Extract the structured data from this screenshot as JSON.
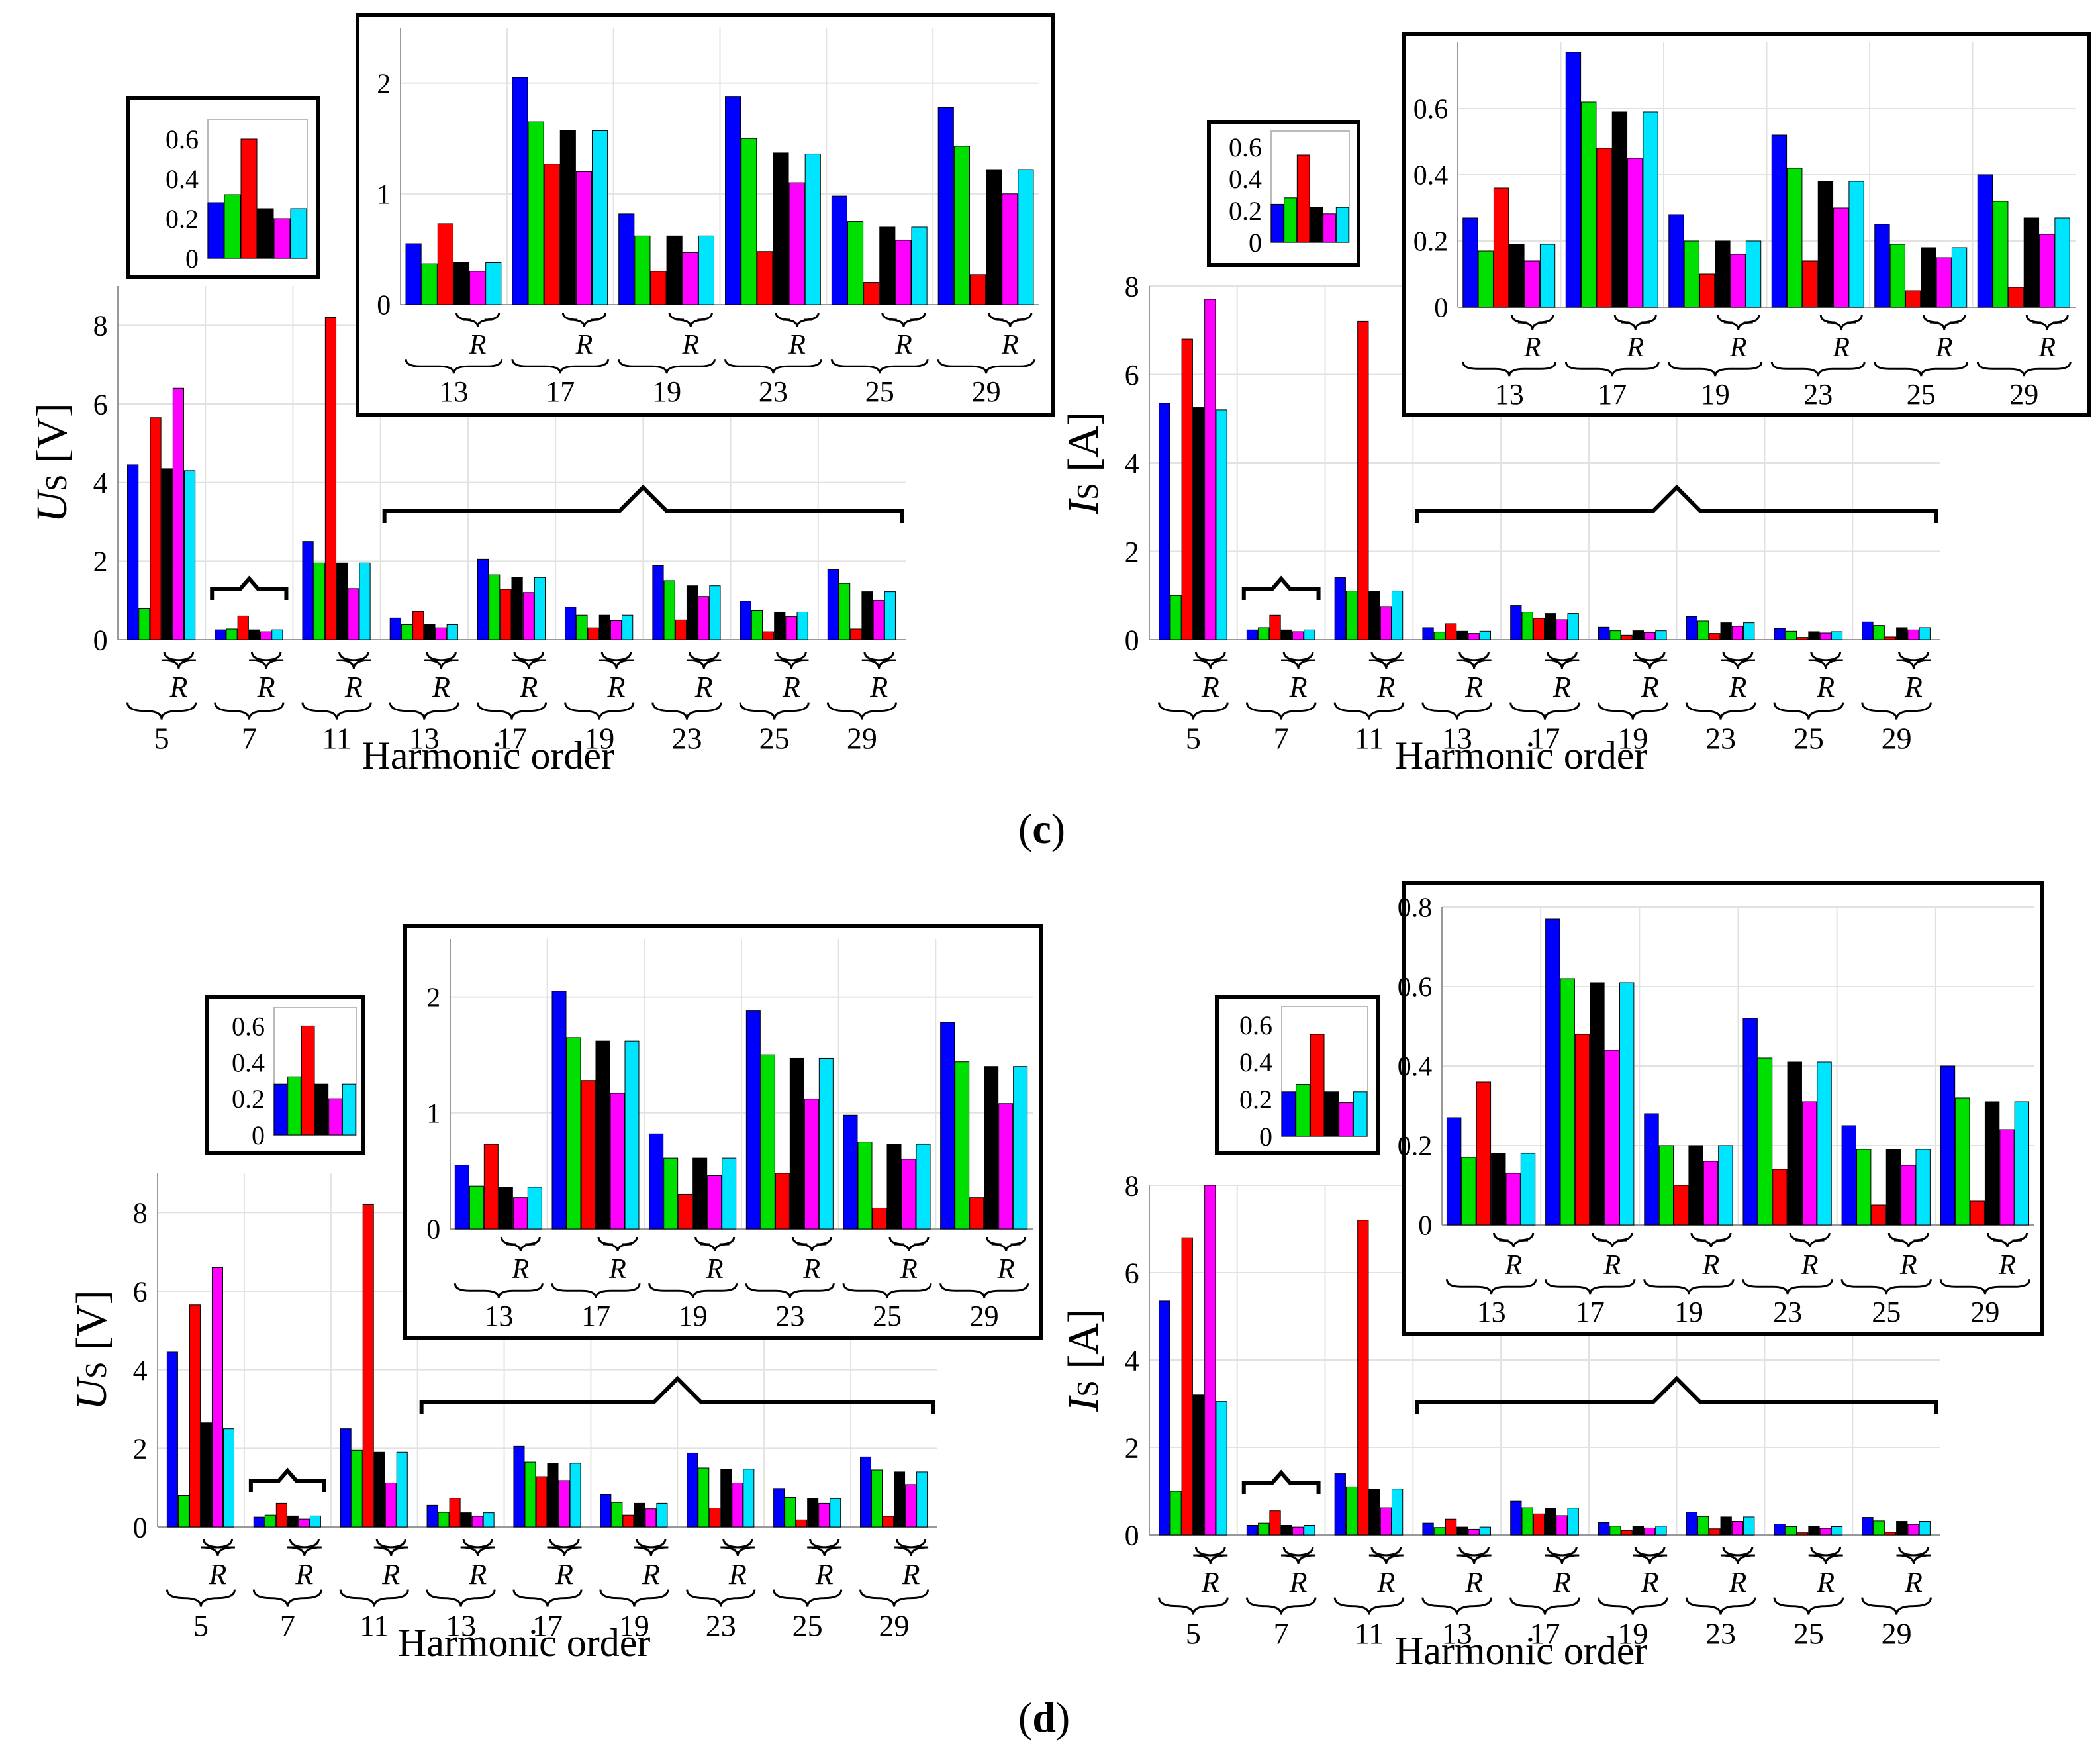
{
  "figure": {
    "label_c": {
      "open": "(",
      "letter": "c",
      "close": ")"
    },
    "label_d": {
      "open": "(",
      "letter": "d",
      "close": ")"
    },
    "series_colors": [
      "#0000ff",
      "#00e000",
      "#ff0000",
      "#000000",
      "#ff00ff",
      "#00e5ff"
    ],
    "brace_marker": "R"
  },
  "chart_data": [
    {
      "id": "c-voltage",
      "type": "bar",
      "xlabel": "Harmonic order",
      "ylabel_main": "U",
      "ylabel_sub": "S",
      "ylabel_unit": " [V]",
      "ylim": [
        0,
        9
      ],
      "yticks": [
        "0",
        "2",
        "4",
        "6",
        "8"
      ],
      "categories": [
        "5",
        "7",
        "11",
        "13",
        "17",
        "19",
        "23",
        "25",
        "29"
      ],
      "values": [
        [
          4.45,
          0.8,
          5.65,
          4.35,
          6.4,
          4.3
        ],
        [
          0.25,
          0.27,
          0.6,
          0.25,
          0.2,
          0.25
        ],
        [
          2.5,
          1.95,
          8.2,
          1.95,
          1.3,
          1.95
        ],
        [
          0.55,
          0.38,
          0.72,
          0.38,
          0.3,
          0.38
        ],
        [
          2.05,
          1.65,
          1.28,
          1.58,
          1.2,
          1.58
        ],
        [
          0.83,
          0.62,
          0.3,
          0.62,
          0.48,
          0.62
        ],
        [
          1.88,
          1.5,
          0.5,
          1.37,
          1.1,
          1.37
        ],
        [
          0.98,
          0.75,
          0.2,
          0.7,
          0.58,
          0.7
        ],
        [
          1.78,
          1.43,
          0.27,
          1.22,
          1.0,
          1.22
        ]
      ],
      "inset_small": {
        "ylim": [
          0,
          0.7
        ],
        "yticks": [
          "0",
          "0.2",
          "0.4",
          "0.6"
        ],
        "values": [
          0.28,
          0.32,
          0.6,
          0.25,
          0.2,
          0.25
        ]
      },
      "inset_large": {
        "ylim": [
          0,
          2.5
        ],
        "yticks": [
          "0",
          "1",
          "2"
        ],
        "categories": [
          "13",
          "17",
          "19",
          "23",
          "25",
          "29"
        ],
        "values": [
          [
            0.55,
            0.37,
            0.73,
            0.38,
            0.3,
            0.38
          ],
          [
            2.05,
            1.65,
            1.27,
            1.57,
            1.2,
            1.57
          ],
          [
            0.82,
            0.62,
            0.3,
            0.62,
            0.47,
            0.62
          ],
          [
            1.88,
            1.5,
            0.48,
            1.37,
            1.1,
            1.36
          ],
          [
            0.98,
            0.75,
            0.2,
            0.7,
            0.58,
            0.7
          ],
          [
            1.78,
            1.43,
            0.27,
            1.22,
            1.0,
            1.22
          ]
        ]
      }
    },
    {
      "id": "c-current",
      "type": "bar",
      "xlabel": "Harmonic order",
      "ylabel_main": "I",
      "ylabel_sub": "S",
      "ylabel_unit": " [A]",
      "ylim": [
        0,
        8
      ],
      "yticks": [
        "0",
        "2",
        "4",
        "6",
        "8"
      ],
      "categories": [
        "5",
        "7",
        "11",
        "13",
        "17",
        "19",
        "23",
        "25",
        "29"
      ],
      "values": [
        [
          5.35,
          1.0,
          6.8,
          5.25,
          7.7,
          5.2
        ],
        [
          0.22,
          0.27,
          0.55,
          0.22,
          0.18,
          0.22
        ],
        [
          1.4,
          1.1,
          7.2,
          1.1,
          0.75,
          1.1
        ],
        [
          0.27,
          0.17,
          0.36,
          0.19,
          0.14,
          0.19
        ],
        [
          0.77,
          0.62,
          0.48,
          0.59,
          0.45,
          0.59
        ],
        [
          0.28,
          0.2,
          0.1,
          0.2,
          0.16,
          0.2
        ],
        [
          0.52,
          0.42,
          0.14,
          0.38,
          0.3,
          0.38
        ],
        [
          0.25,
          0.19,
          0.05,
          0.18,
          0.15,
          0.18
        ],
        [
          0.4,
          0.32,
          0.06,
          0.27,
          0.22,
          0.27
        ]
      ],
      "inset_small": {
        "ylim": [
          0,
          0.7
        ],
        "yticks": [
          "0",
          "0.2",
          "0.4",
          "0.6"
        ],
        "values": [
          0.24,
          0.28,
          0.55,
          0.22,
          0.18,
          0.22
        ]
      },
      "inset_large": {
        "ylim": [
          0,
          0.8
        ],
        "yticks": [
          "0",
          "0.2",
          "0.4",
          "0.6"
        ],
        "categories": [
          "13",
          "17",
          "19",
          "23",
          "25",
          "29"
        ],
        "values": [
          [
            0.27,
            0.17,
            0.36,
            0.19,
            0.14,
            0.19
          ],
          [
            0.77,
            0.62,
            0.48,
            0.59,
            0.45,
            0.59
          ],
          [
            0.28,
            0.2,
            0.1,
            0.2,
            0.16,
            0.2
          ],
          [
            0.52,
            0.42,
            0.14,
            0.38,
            0.3,
            0.38
          ],
          [
            0.25,
            0.19,
            0.05,
            0.18,
            0.15,
            0.18
          ],
          [
            0.4,
            0.32,
            0.06,
            0.27,
            0.22,
            0.27
          ]
        ]
      }
    },
    {
      "id": "d-voltage",
      "type": "bar",
      "xlabel": "Harmonic order",
      "ylabel_main": "U",
      "ylabel_sub": "S",
      "ylabel_unit": " [V]",
      "ylim": [
        0,
        9
      ],
      "yticks": [
        "0",
        "2",
        "4",
        "6",
        "8"
      ],
      "categories": [
        "5",
        "7",
        "11",
        "13",
        "17",
        "19",
        "23",
        "25",
        "29"
      ],
      "values": [
        [
          4.45,
          0.8,
          5.65,
          2.65,
          6.6,
          2.5
        ],
        [
          0.25,
          0.3,
          0.6,
          0.28,
          0.2,
          0.28
        ],
        [
          2.5,
          1.95,
          8.2,
          1.9,
          1.12,
          1.9
        ],
        [
          0.55,
          0.37,
          0.73,
          0.36,
          0.27,
          0.36
        ],
        [
          2.05,
          1.65,
          1.28,
          1.62,
          1.18,
          1.62
        ],
        [
          0.82,
          0.62,
          0.3,
          0.6,
          0.46,
          0.6
        ],
        [
          1.88,
          1.5,
          0.48,
          1.47,
          1.12,
          1.47
        ],
        [
          0.98,
          0.75,
          0.18,
          0.72,
          0.6,
          0.72
        ],
        [
          1.78,
          1.45,
          0.27,
          1.4,
          1.08,
          1.4
        ]
      ],
      "inset_small": {
        "ylim": [
          0,
          0.7
        ],
        "yticks": [
          "0",
          "0.2",
          "0.4",
          "0.6"
        ],
        "values": [
          0.28,
          0.32,
          0.6,
          0.28,
          0.2,
          0.28
        ]
      },
      "inset_large": {
        "ylim": [
          0,
          2.5
        ],
        "yticks": [
          "0",
          "1",
          "2"
        ],
        "categories": [
          "13",
          "17",
          "19",
          "23",
          "25",
          "29"
        ],
        "values": [
          [
            0.55,
            0.37,
            0.73,
            0.36,
            0.27,
            0.36
          ],
          [
            2.05,
            1.65,
            1.28,
            1.62,
            1.17,
            1.62
          ],
          [
            0.82,
            0.61,
            0.3,
            0.61,
            0.46,
            0.61
          ],
          [
            1.88,
            1.5,
            0.48,
            1.47,
            1.12,
            1.47
          ],
          [
            0.98,
            0.75,
            0.18,
            0.73,
            0.6,
            0.73
          ],
          [
            1.78,
            1.44,
            0.27,
            1.4,
            1.08,
            1.4
          ]
        ]
      }
    },
    {
      "id": "d-current",
      "type": "bar",
      "xlabel": "Harmonic order",
      "ylabel_main": "I",
      "ylabel_sub": "S",
      "ylabel_unit": " [A]",
      "ylim": [
        0,
        8
      ],
      "yticks": [
        "0",
        "2",
        "4",
        "6",
        "8"
      ],
      "categories": [
        "5",
        "7",
        "11",
        "13",
        "17",
        "19",
        "23",
        "25",
        "29"
      ],
      "values": [
        [
          5.35,
          1.0,
          6.8,
          3.2,
          8.0,
          3.05
        ],
        [
          0.22,
          0.27,
          0.55,
          0.22,
          0.18,
          0.22
        ],
        [
          1.4,
          1.1,
          7.2,
          1.05,
          0.62,
          1.05
        ],
        [
          0.27,
          0.17,
          0.36,
          0.18,
          0.13,
          0.18
        ],
        [
          0.77,
          0.62,
          0.48,
          0.61,
          0.44,
          0.61
        ],
        [
          0.28,
          0.2,
          0.1,
          0.2,
          0.16,
          0.2
        ],
        [
          0.52,
          0.42,
          0.14,
          0.41,
          0.31,
          0.41
        ],
        [
          0.25,
          0.19,
          0.05,
          0.19,
          0.15,
          0.19
        ],
        [
          0.4,
          0.32,
          0.06,
          0.31,
          0.24,
          0.31
        ]
      ],
      "inset_small": {
        "ylim": [
          0,
          0.7
        ],
        "yticks": [
          "0",
          "0.2",
          "0.4",
          "0.6"
        ],
        "values": [
          0.24,
          0.28,
          0.55,
          0.24,
          0.18,
          0.24
        ]
      },
      "inset_large": {
        "ylim": [
          0,
          0.8
        ],
        "yticks": [
          "0",
          "0.2",
          "0.4",
          "0.6",
          "0.8"
        ],
        "categories": [
          "13",
          "17",
          "19",
          "23",
          "25",
          "29"
        ],
        "values": [
          [
            0.27,
            0.17,
            0.36,
            0.18,
            0.13,
            0.18
          ],
          [
            0.77,
            0.62,
            0.48,
            0.61,
            0.44,
            0.61
          ],
          [
            0.28,
            0.2,
            0.1,
            0.2,
            0.16,
            0.2
          ],
          [
            0.52,
            0.42,
            0.14,
            0.41,
            0.31,
            0.41
          ],
          [
            0.25,
            0.19,
            0.05,
            0.19,
            0.15,
            0.19
          ],
          [
            0.4,
            0.32,
            0.06,
            0.31,
            0.24,
            0.31
          ]
        ]
      }
    }
  ]
}
